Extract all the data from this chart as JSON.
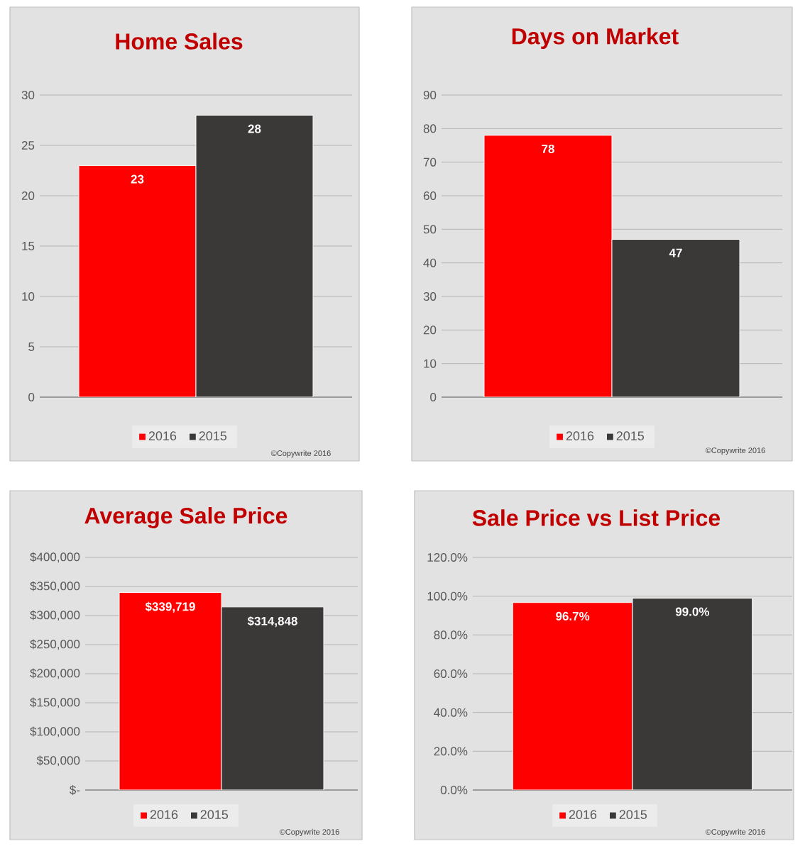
{
  "chart_data": [
    {
      "type": "bar",
      "title": "Home Sales",
      "categories": [
        null
      ],
      "series": [
        {
          "name": "2016",
          "color": "#ff0000",
          "values": [
            23
          ]
        },
        {
          "name": "2015",
          "color": "#3b3838",
          "values": [
            28
          ]
        }
      ],
      "ylim": [
        0,
        30
      ],
      "yticks": [
        0,
        5,
        10,
        15,
        20,
        25,
        30
      ],
      "grid": "y",
      "legend": "bottom",
      "data_labels": true,
      "annotations": [
        "©Copywrite 2016"
      ]
    },
    {
      "type": "bar",
      "title": "Days on Market",
      "categories": [
        null
      ],
      "series": [
        {
          "name": "2016",
          "color": "#ff0000",
          "values": [
            78
          ]
        },
        {
          "name": "2015",
          "color": "#3b3838",
          "values": [
            47
          ]
        }
      ],
      "ylim": [
        0,
        90
      ],
      "yticks": [
        0,
        10,
        20,
        30,
        40,
        50,
        60,
        70,
        80,
        90
      ],
      "grid": "y",
      "legend": "bottom",
      "data_labels": true,
      "annotations": [
        "©Copywrite 2016"
      ]
    },
    {
      "type": "bar",
      "title": "Average Sale Price",
      "categories": [
        null
      ],
      "series": [
        {
          "name": "2016",
          "color": "#ff0000",
          "values": [
            339719
          ],
          "value_labels": [
            "$339,719"
          ]
        },
        {
          "name": "2015",
          "color": "#3b3838",
          "values": [
            314848
          ],
          "value_labels": [
            "$314,848"
          ]
        }
      ],
      "ylim": [
        0,
        400000
      ],
      "yticks": [
        {
          "value": 0,
          "label": "$-"
        },
        {
          "value": 50000,
          "label": "$50,000"
        },
        {
          "value": 100000,
          "label": "$100,000"
        },
        {
          "value": 150000,
          "label": "$150,000"
        },
        {
          "value": 200000,
          "label": "$200,000"
        },
        {
          "value": 250000,
          "label": "$250,000"
        },
        {
          "value": 300000,
          "label": "$300,000"
        },
        {
          "value": 350000,
          "label": "$350,000"
        },
        {
          "value": 400000,
          "label": "$400,000"
        }
      ],
      "grid": "y",
      "legend": "bottom",
      "annotations": [
        "©Copywrite 2016"
      ]
    },
    {
      "type": "bar",
      "title": "Sale Price vs List Price",
      "categories": [
        null
      ],
      "series": [
        {
          "name": "2016",
          "color": "#ff0000",
          "values": [
            96.7
          ],
          "value_labels": [
            "96.7%"
          ]
        },
        {
          "name": "2015",
          "color": "#3b3838",
          "values": [
            99.0
          ],
          "value_labels": [
            "99.0%"
          ]
        }
      ],
      "ylim": [
        0,
        120
      ],
      "yticks": [
        {
          "value": 0,
          "label": "0.0%"
        },
        {
          "value": 20,
          "label": "20.0%"
        },
        {
          "value": 40,
          "label": "40.0%"
        },
        {
          "value": 60,
          "label": "60.0%"
        },
        {
          "value": 80,
          "label": "80.0%"
        },
        {
          "value": 100,
          "label": "100.0%"
        },
        {
          "value": 120,
          "label": "120.0%"
        }
      ],
      "grid": "y",
      "legend": "bottom",
      "annotations": [
        "©Copywrite 2016"
      ]
    }
  ]
}
